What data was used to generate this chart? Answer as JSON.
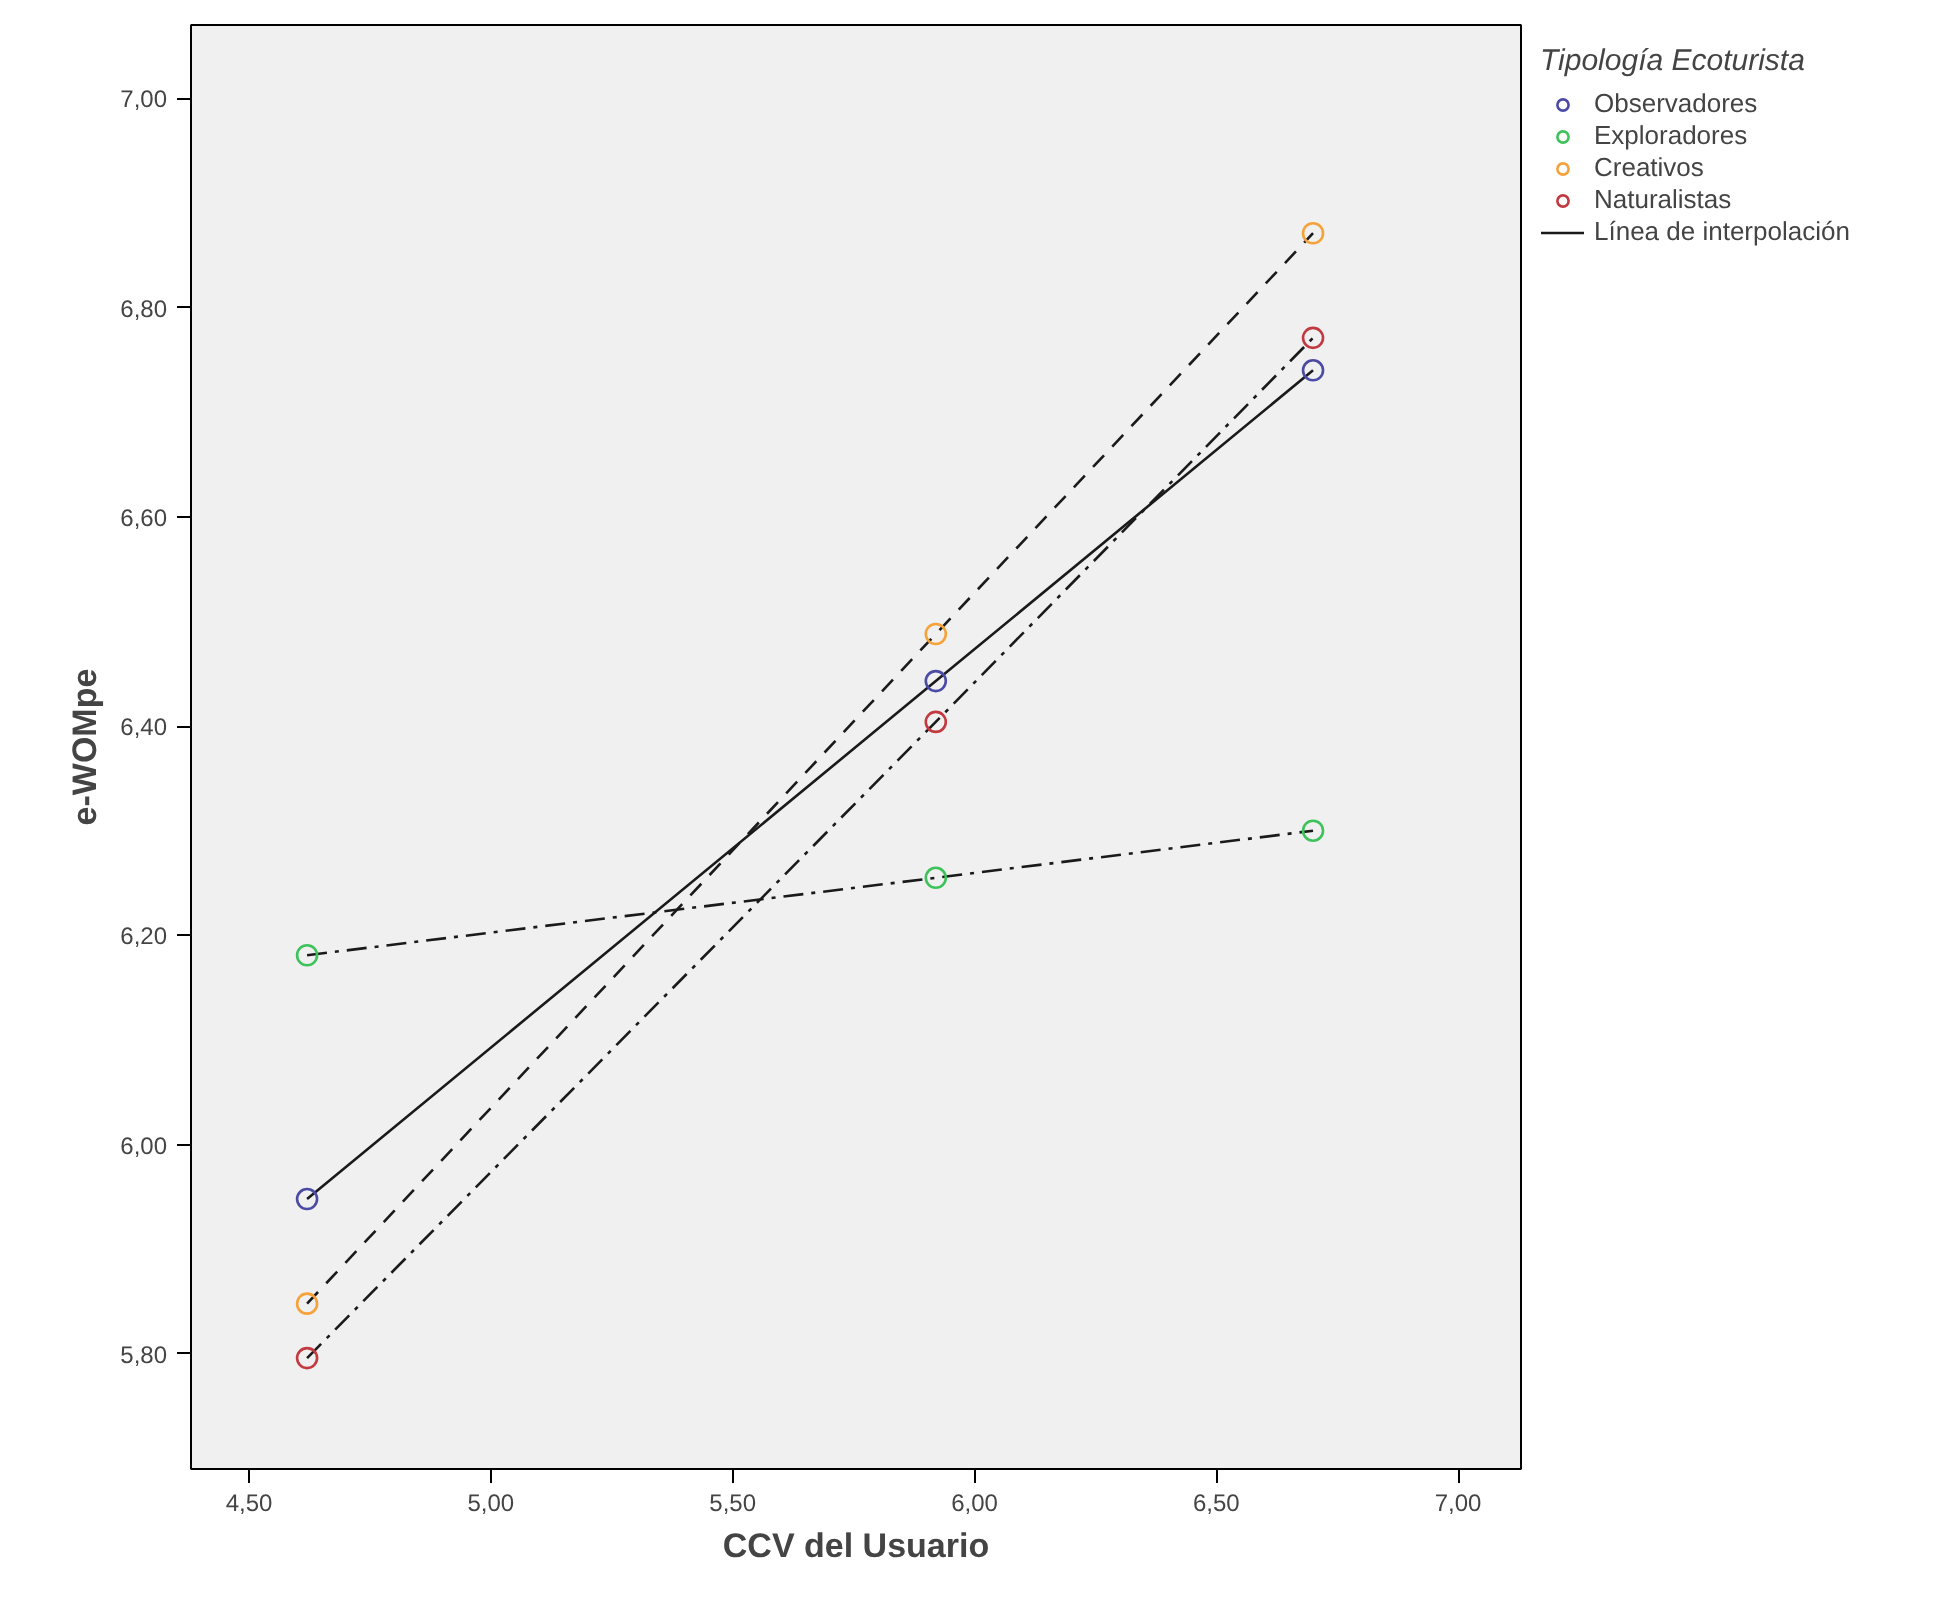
{
  "chart_data": {
    "type": "line",
    "xlabel": "CCV del Usuario",
    "ylabel": "e-WOMpe",
    "legend_title": "Tipología Ecoturista",
    "x": [
      4.62,
      5.92,
      6.7
    ],
    "marker": "circle",
    "legend": "right",
    "grid": false,
    "annotations": [
      "Línea de interpolación"
    ],
    "series": [
      {
        "name": "Observadores",
        "color": "#4b4ba6",
        "line_style": "solid",
        "values": [
          5.948,
          6.443,
          6.74
        ]
      },
      {
        "name": "Exploradores",
        "color": "#3ec25a",
        "line_style": "dashdot",
        "values": [
          6.181,
          6.255,
          6.3
        ]
      },
      {
        "name": "Creativos",
        "color": "#f6a23a",
        "line_style": "dashed",
        "values": [
          5.848,
          6.488,
          6.871
        ]
      },
      {
        "name": "Naturalistas",
        "color": "#c23a40",
        "line_style": "dashdot",
        "values": [
          5.796,
          6.404,
          6.771
        ]
      }
    ],
    "xlim": [
      4.38,
      7.13
    ],
    "ylim": [
      5.69,
      7.07
    ],
    "xticks": [
      {
        "value": 4.5,
        "label": "4,50"
      },
      {
        "value": 5.0,
        "label": "5,00"
      },
      {
        "value": 5.5,
        "label": "5,50"
      },
      {
        "value": 6.0,
        "label": "6,00"
      },
      {
        "value": 6.5,
        "label": "6,50"
      },
      {
        "value": 7.0,
        "label": "7,00"
      }
    ],
    "yticks": [
      {
        "value": 5.8,
        "label": "5,80"
      },
      {
        "value": 6.0,
        "label": "6,00"
      },
      {
        "value": 6.2,
        "label": "6,20"
      },
      {
        "value": 6.4,
        "label": "6,40"
      },
      {
        "value": 6.6,
        "label": "6,60"
      },
      {
        "value": 6.8,
        "label": "6,80"
      },
      {
        "value": 7.0,
        "label": "7,00"
      }
    ]
  }
}
